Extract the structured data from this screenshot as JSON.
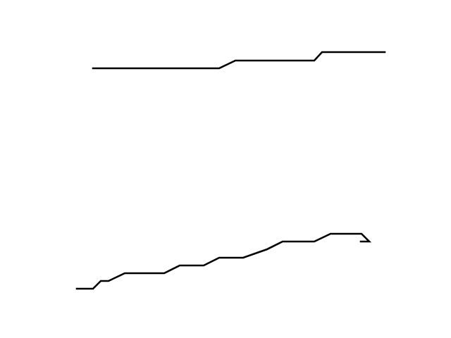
{
  "figure": {
    "background_color": "#ffffff",
    "line_color": "#000000",
    "lines": [
      {
        "id": "upper-line",
        "steps": 3
      },
      {
        "id": "lower-line",
        "steps": 12
      }
    ]
  }
}
